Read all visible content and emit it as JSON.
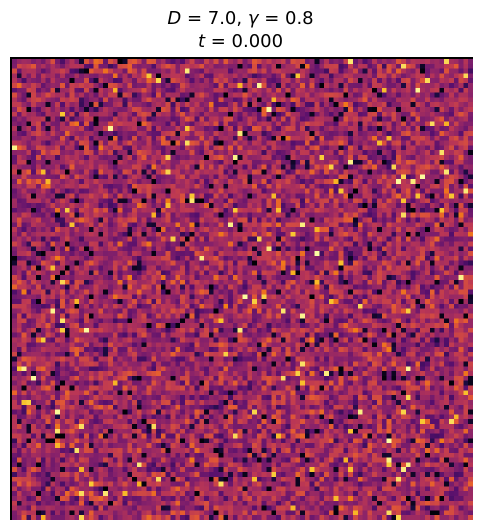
{
  "chart_data": {
    "type": "heatmap",
    "title_line1": "D = 7.0, γ = 0.8",
    "title_line2": "t = 0.000",
    "xlabel": "",
    "ylabel": "",
    "axes_ticks_visible": false,
    "colormap": "inferno",
    "colorbar": false,
    "grid": false,
    "rows": 96,
    "cols": 96,
    "field_description_values": "random uniform noise field at initial time",
    "value_range": [
      0,
      1
    ],
    "seed": 7
  },
  "colors": {
    "frame": "#000000",
    "background": "#ffffff"
  }
}
